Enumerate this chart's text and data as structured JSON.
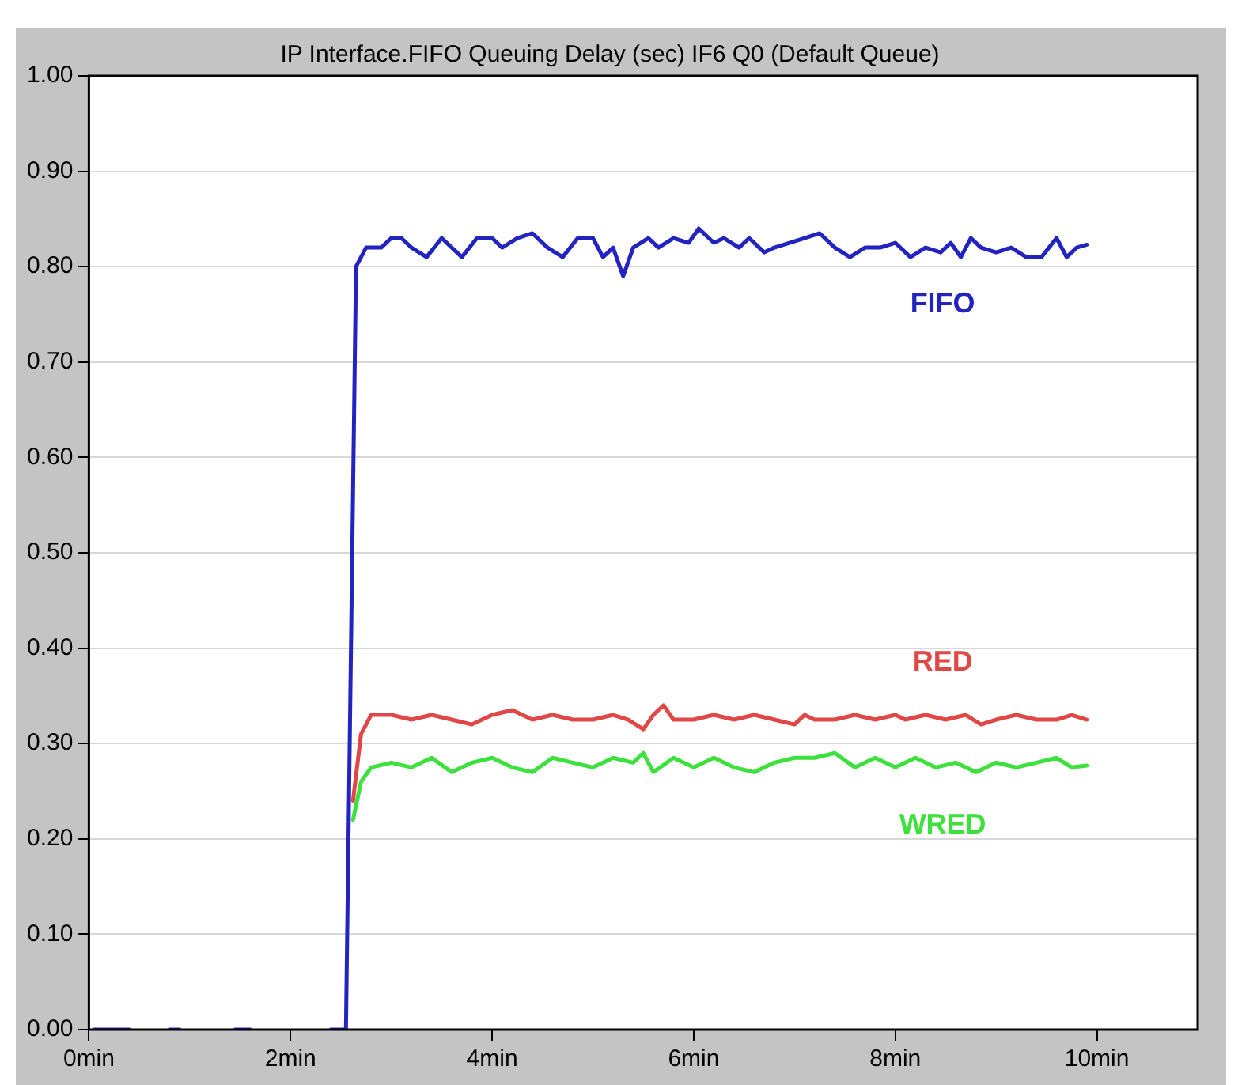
{
  "chart_data": {
    "type": "line",
    "title": "IP Interface.FIFO Queuing Delay (sec) IF6 Q0 (Default Queue)",
    "xlim": [
      0,
      11
    ],
    "xticks": [
      {
        "value": 0,
        "label": "0min"
      },
      {
        "value": 2,
        "label": "2min"
      },
      {
        "value": 4,
        "label": "4min"
      },
      {
        "value": 6,
        "label": "6min"
      },
      {
        "value": 8,
        "label": "8min"
      },
      {
        "value": 10,
        "label": "10min"
      }
    ],
    "ylim": [
      0,
      1
    ],
    "yticks": [
      {
        "value": 0,
        "label": "0.00"
      },
      {
        "value": 0.1,
        "label": "0.10"
      },
      {
        "value": 0.2,
        "label": "0.20"
      },
      {
        "value": 0.3,
        "label": "0.30"
      },
      {
        "value": 0.4,
        "label": "0.40"
      },
      {
        "value": 0.5,
        "label": "0.50"
      },
      {
        "value": 0.6,
        "label": "0.60"
      },
      {
        "value": 0.7,
        "label": "0.70"
      },
      {
        "value": 0.8,
        "label": "0.80"
      },
      {
        "value": 0.9,
        "label": "0.90"
      },
      {
        "value": 1,
        "label": "1.00"
      }
    ],
    "grid": "y",
    "legend": false,
    "marker": "none",
    "line_style": "solid",
    "series": [
      {
        "name": "FIFO",
        "color": "#2323c0",
        "x": [
          0.05,
          0.4,
          0.6,
          0.8,
          0.9,
          1.0,
          1.45,
          1.6,
          1.8,
          2.4,
          2.55,
          2.65,
          2.75,
          2.9,
          3.0,
          3.1,
          3.2,
          3.35,
          3.5,
          3.6,
          3.7,
          3.85,
          4.0,
          4.1,
          4.25,
          4.4,
          4.55,
          4.7,
          4.85,
          5.0,
          5.1,
          5.2,
          5.3,
          5.4,
          5.55,
          5.65,
          5.8,
          5.95,
          6.05,
          6.2,
          6.3,
          6.45,
          6.55,
          6.7,
          6.8,
          6.95,
          7.1,
          7.25,
          7.4,
          7.55,
          7.7,
          7.85,
          8.0,
          8.15,
          8.3,
          8.45,
          8.55,
          8.65,
          8.75,
          8.85,
          9.0,
          9.15,
          9.3,
          9.45,
          9.6,
          9.7,
          9.8,
          9.9
        ],
        "values": [
          0,
          0,
          null,
          0,
          0,
          null,
          0,
          0,
          null,
          0,
          0,
          0.8,
          0.82,
          0.82,
          0.83,
          0.83,
          0.82,
          0.81,
          0.83,
          0.82,
          0.81,
          0.83,
          0.83,
          0.82,
          0.83,
          0.835,
          0.82,
          0.81,
          0.83,
          0.83,
          0.81,
          0.82,
          0.79,
          0.82,
          0.83,
          0.82,
          0.83,
          0.825,
          0.84,
          0.825,
          0.83,
          0.82,
          0.83,
          0.815,
          0.82,
          0.825,
          0.83,
          0.835,
          0.82,
          0.81,
          0.82,
          0.82,
          0.825,
          0.81,
          0.82,
          0.815,
          0.825,
          0.81,
          0.83,
          0.82,
          0.815,
          0.82,
          0.81,
          0.81,
          0.83,
          0.81,
          0.82,
          0.823
        ]
      },
      {
        "name": "RED",
        "color": "#e04848",
        "x": [
          2.62,
          2.7,
          2.8,
          2.9,
          3.0,
          3.2,
          3.4,
          3.6,
          3.8,
          4.0,
          4.2,
          4.4,
          4.6,
          4.8,
          5.0,
          5.2,
          5.35,
          5.5,
          5.6,
          5.7,
          5.8,
          6.0,
          6.2,
          6.4,
          6.6,
          6.8,
          7.0,
          7.1,
          7.2,
          7.4,
          7.6,
          7.8,
          8.0,
          8.1,
          8.3,
          8.5,
          8.7,
          8.85,
          9.0,
          9.2,
          9.4,
          9.6,
          9.75,
          9.9
        ],
        "values": [
          0.24,
          0.31,
          0.33,
          0.33,
          0.33,
          0.325,
          0.33,
          0.325,
          0.32,
          0.33,
          0.335,
          0.325,
          0.33,
          0.325,
          0.325,
          0.33,
          0.325,
          0.315,
          0.33,
          0.34,
          0.325,
          0.325,
          0.33,
          0.325,
          0.33,
          0.325,
          0.32,
          0.33,
          0.325,
          0.325,
          0.33,
          0.325,
          0.33,
          0.325,
          0.33,
          0.325,
          0.33,
          0.32,
          0.325,
          0.33,
          0.325,
          0.325,
          0.33,
          0.325
        ]
      },
      {
        "name": "WRED",
        "color": "#3ee03e",
        "x": [
          2.62,
          2.7,
          2.8,
          3.0,
          3.2,
          3.4,
          3.6,
          3.8,
          4.0,
          4.2,
          4.4,
          4.6,
          4.8,
          5.0,
          5.2,
          5.4,
          5.5,
          5.6,
          5.8,
          6.0,
          6.2,
          6.4,
          6.6,
          6.8,
          7.0,
          7.2,
          7.4,
          7.6,
          7.8,
          8.0,
          8.2,
          8.4,
          8.6,
          8.8,
          9.0,
          9.2,
          9.4,
          9.6,
          9.75,
          9.9
        ],
        "values": [
          0.22,
          0.26,
          0.275,
          0.28,
          0.275,
          0.285,
          0.27,
          0.28,
          0.285,
          0.275,
          0.27,
          0.285,
          0.28,
          0.275,
          0.285,
          0.28,
          0.29,
          0.27,
          0.285,
          0.275,
          0.285,
          0.275,
          0.27,
          0.28,
          0.285,
          0.285,
          0.29,
          0.275,
          0.285,
          0.275,
          0.285,
          0.275,
          0.28,
          0.27,
          0.28,
          0.275,
          0.28,
          0.285,
          0.275,
          0.277
        ]
      }
    ]
  }
}
